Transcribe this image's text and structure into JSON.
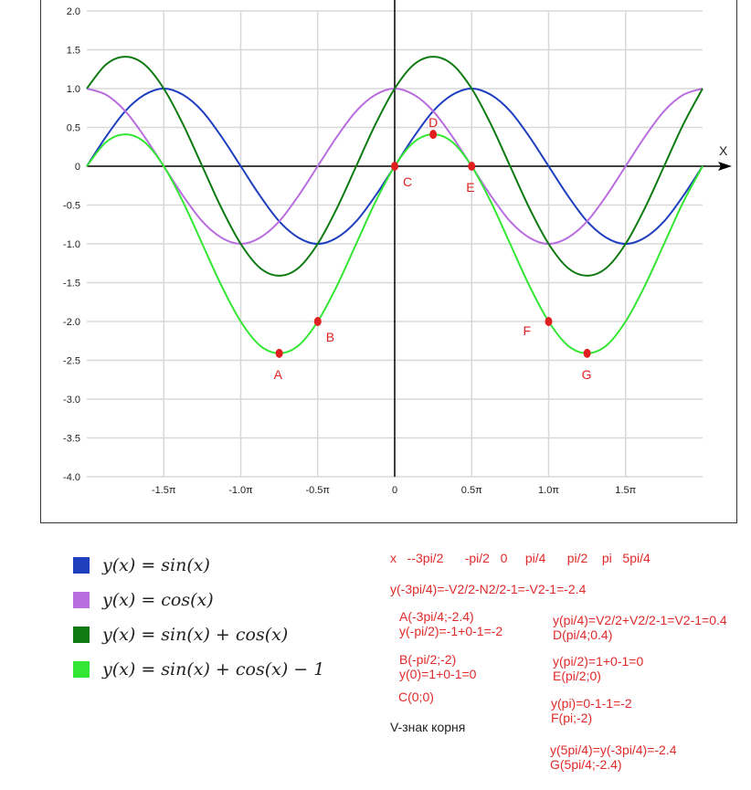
{
  "chart_data": {
    "type": "line",
    "x_unit": "π",
    "x": [
      -2,
      -1.875,
      -1.75,
      -1.625,
      -1.5,
      -1.375,
      -1.25,
      -1.125,
      -1,
      -0.875,
      -0.75,
      -0.625,
      -0.5,
      -0.375,
      -0.25,
      -0.125,
      0,
      0.125,
      0.25,
      0.375,
      0.5,
      0.625,
      0.75,
      0.875,
      1,
      1.125,
      1.25,
      1.375,
      1.5,
      1.625,
      1.75,
      1.875,
      2
    ],
    "xlim": [
      -2,
      2
    ],
    "ylim": [
      -4,
      2
    ],
    "x_ticks": [
      -1.5,
      -1,
      -0.5,
      0,
      0.5,
      1,
      1.5
    ],
    "x_tick_labels": [
      "-1.5π",
      "-1.0π",
      "-0.5π",
      "0",
      "0.5π",
      "1.0π",
      "1.5π"
    ],
    "y_ticks": [
      2,
      1.5,
      1,
      0.5,
      0,
      -0.5,
      -1,
      -1.5,
      -2,
      -2.5,
      -3,
      -3.5,
      -4
    ],
    "y_tick_labels": [
      "2.0",
      "1.5",
      "1.0",
      "0.5",
      "0",
      "-0.5",
      "-1.0",
      "-1.5",
      "-2.0",
      "-2.5",
      "-3.0",
      "-3.5",
      "-4.0"
    ],
    "xlabel": "X",
    "grid": true,
    "series": [
      {
        "name": "y(x) = sin(x)",
        "color": "#1f3fbf",
        "values": [
          0,
          0.38,
          0.71,
          0.92,
          1,
          0.92,
          0.71,
          0.38,
          0,
          -0.38,
          -0.71,
          -0.92,
          -1,
          -0.92,
          -0.71,
          -0.38,
          0,
          0.38,
          0.71,
          0.92,
          1,
          0.92,
          0.71,
          0.38,
          0,
          -0.38,
          -0.71,
          -0.92,
          -1,
          -0.92,
          -0.71,
          -0.38,
          0
        ]
      },
      {
        "name": "y(x) = cos(x)",
        "color": "#b96ee0",
        "values": [
          1,
          0.92,
          0.71,
          0.38,
          0,
          -0.38,
          -0.71,
          -0.92,
          -1,
          -0.92,
          -0.71,
          -0.38,
          0,
          0.38,
          0.71,
          0.92,
          1,
          0.92,
          0.71,
          0.38,
          0,
          -0.38,
          -0.71,
          -0.92,
          -1,
          -0.92,
          -0.71,
          -0.38,
          0,
          0.38,
          0.71,
          0.92,
          1
        ]
      },
      {
        "name": "y(x) = sin(x) + cos(x)",
        "color": "#0e7a12",
        "values": [
          1,
          1.31,
          1.41,
          1.31,
          1,
          0.54,
          0,
          -0.54,
          -1,
          -1.31,
          -1.41,
          -1.31,
          -1,
          -0.54,
          0,
          0.54,
          1,
          1.31,
          1.41,
          1.31,
          1,
          0.54,
          0,
          -0.54,
          -1,
          -1.31,
          -1.41,
          -1.31,
          -1,
          -0.54,
          0,
          0.54,
          1
        ]
      },
      {
        "name": "y(x) = sin(x) + cos(x) − 1",
        "color": "#33e633",
        "values": [
          0,
          0.31,
          0.41,
          0.31,
          0,
          -0.46,
          -1,
          -1.54,
          -2,
          -2.31,
          -2.41,
          -2.31,
          -2,
          -1.54,
          -1,
          -0.46,
          0,
          0.31,
          0.41,
          0.31,
          0,
          -0.46,
          -1,
          -1.54,
          -2,
          -2.31,
          -2.41,
          -2.31,
          -2,
          -1.54,
          -1,
          -0.46,
          0
        ]
      }
    ],
    "points": [
      {
        "label": "A",
        "x": -0.75,
        "y": -2.41,
        "label_pos": "below"
      },
      {
        "label": "B",
        "x": -0.5,
        "y": -2,
        "label_pos": "right-below"
      },
      {
        "label": "C",
        "x": 0,
        "y": 0,
        "label_pos": "right-below"
      },
      {
        "label": "D",
        "x": 0.25,
        "y": 0.41,
        "label_pos": "above"
      },
      {
        "label": "E",
        "x": 0.5,
        "y": 0,
        "label_pos": "below"
      },
      {
        "label": "F",
        "x": 1,
        "y": -2,
        "label_pos": "left-below"
      },
      {
        "label": "G",
        "x": 1.25,
        "y": -2.41,
        "label_pos": "below"
      }
    ],
    "point_color": "#e02020"
  },
  "notes": {
    "table_x": "x   --3pi/2      -pi/2   0     pi/4      pi/2    pi   5pi/4",
    "y_a": "y(-3pi/4)=-V2/2-N2/2-1=-V2-1=-2.4",
    "a": "A(-3pi/4;-2.4)\ny(-pi/2)=-1+0-1=-2",
    "b": "B(-pi/2;-2)\ny(0)=1+0-1=0",
    "c": "C(0;0)",
    "root": "V-знак корня",
    "d": "y(pi/4)=V2/2+V2/2-1=V2-1=0.4\nD(pi/4;0.4)",
    "e": "y(pi/2)=1+0-1=0\nE(pi/2;0)",
    "f": "y(pi)=0-1-1=-2\nF(pi;-2)",
    "g": "y(5pi/4)=y(-3pi/4)=-2.4\nG(5pi/4;-2.4)"
  }
}
